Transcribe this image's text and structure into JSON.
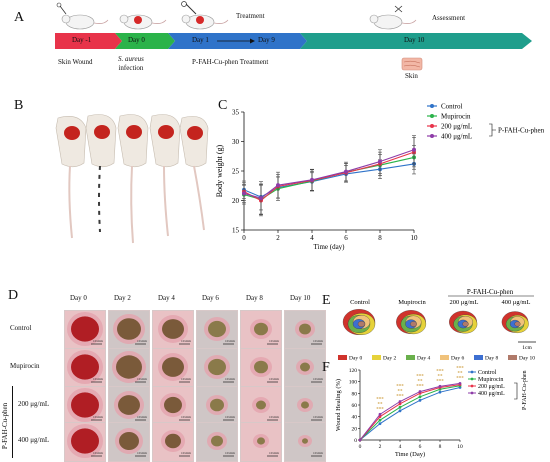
{
  "panels": {
    "A": "A",
    "B": "B",
    "C": "C",
    "D": "D",
    "E": "E",
    "F": "F"
  },
  "timeline": {
    "stages": [
      {
        "label": "Day -1",
        "color": "#e8334a"
      },
      {
        "label": "Day 0",
        "color": "#2bb34a"
      },
      {
        "label": "Day 1",
        "color": "#2f73c9"
      },
      {
        "label": "Day 9",
        "color": "#2f73c9"
      },
      {
        "label": "Day 10",
        "color": "#1f9e8c"
      }
    ],
    "treatment_label": "Treatment",
    "assessment_label": "Assessment",
    "skin_wound": "Skin Wound",
    "infection_italic": "S. aureus",
    "infection": "infection",
    "pfah_treatment": "P-FAH-Cu-phen Treatment",
    "skin": "Skin"
  },
  "panel_d": {
    "days": [
      "Day 0",
      "Day 2",
      "Day 4",
      "Day 6",
      "Day 8",
      "Day 10"
    ],
    "rows": [
      "Control",
      "Mupirocin",
      "200 μg/mL",
      "400 μg/mL"
    ],
    "group_label": "P-FAH-Cu-phen",
    "scale": "10 mm"
  },
  "panel_e": {
    "groups": [
      "Control",
      "Mupirocin",
      "200 μg/mL",
      "400 μg/mL"
    ],
    "group_label": "P-FAH-Cu-phen",
    "legend": [
      {
        "label": "Day 0",
        "color": "#d0332c"
      },
      {
        "label": "Day 2",
        "color": "#e6d23a"
      },
      {
        "label": "Day 4",
        "color": "#6ab04c"
      },
      {
        "label": "Day 6",
        "color": "#f0c27b"
      },
      {
        "label": "Day 8",
        "color": "#3d6fd1"
      },
      {
        "label": "Day 10",
        "color": "#b07a6a"
      }
    ],
    "scale": "1cm"
  },
  "chart_data": [
    {
      "type": "line",
      "title": "",
      "xlabel": "Time (day)",
      "ylabel": "Body weight (g)",
      "xlim": [
        0,
        10
      ],
      "ylim": [
        15,
        35
      ],
      "xticks": [
        0,
        2,
        4,
        6,
        8,
        10
      ],
      "yticks": [
        15,
        20,
        25,
        30,
        35
      ],
      "x": [
        0,
        1,
        2,
        4,
        6,
        8,
        10
      ],
      "series": [
        {
          "name": "Control",
          "color": "#2f73c9",
          "values": [
            21.8,
            20.6,
            22.2,
            23.2,
            24.5,
            25.3,
            26.2
          ],
          "err": [
            1.5,
            2.2,
            1.8,
            1.5,
            1.4,
            1.6,
            1.7
          ]
        },
        {
          "name": "Mupirocin",
          "color": "#2bb34a",
          "values": [
            21.0,
            20.2,
            22.0,
            23.3,
            24.8,
            26.0,
            27.3
          ],
          "err": [
            1.6,
            2.5,
            2.0,
            1.6,
            1.5,
            1.8,
            2.0
          ]
        },
        {
          "name": "200 μg/mL",
          "color": "#e8334a",
          "values": [
            21.5,
            20.0,
            22.4,
            23.4,
            24.7,
            26.2,
            28.2
          ],
          "err": [
            1.5,
            2.6,
            2.0,
            1.8,
            1.6,
            2.0,
            2.5
          ]
        },
        {
          "name": "400 μg/mL",
          "color": "#8e3ca8",
          "values": [
            21.2,
            20.4,
            22.6,
            23.5,
            24.9,
            26.6,
            28.6
          ],
          "err": [
            1.5,
            2.8,
            2.2,
            1.8,
            1.6,
            2.0,
            2.4
          ]
        }
      ],
      "legend_group": "P-FAH-Cu-phen",
      "legend": "top-right"
    },
    {
      "type": "line",
      "title": "",
      "xlabel": "Time (Day)",
      "ylabel": "Wound Healing (%)",
      "xlim": [
        0,
        10
      ],
      "ylim": [
        0,
        120
      ],
      "xticks": [
        0,
        2,
        4,
        6,
        8,
        10
      ],
      "yticks": [
        0,
        20,
        40,
        60,
        80,
        100,
        120
      ],
      "x": [
        0,
        2,
        4,
        6,
        8,
        10
      ],
      "series": [
        {
          "name": "Control",
          "color": "#2f73c9",
          "values": [
            0,
            28,
            50,
            68,
            82,
            90
          ]
        },
        {
          "name": "Mupirocin",
          "color": "#2bb34a",
          "values": [
            0,
            34,
            56,
            74,
            87,
            93
          ]
        },
        {
          "name": "200 μg/mL",
          "color": "#e8334a",
          "values": [
            0,
            40,
            62,
            80,
            90,
            95
          ]
        },
        {
          "name": "400 μg/mL",
          "color": "#8e3ca8",
          "values": [
            0,
            44,
            66,
            83,
            92,
            97
          ]
        }
      ],
      "significance": [
        "***",
        "**",
        "***"
      ],
      "legend_group": "P-FAH-Cu-phen",
      "legend": "top-left"
    }
  ]
}
